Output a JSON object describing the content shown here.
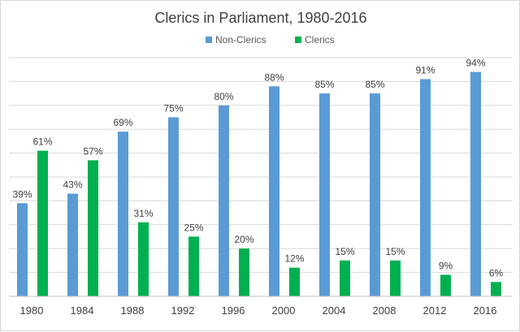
{
  "chart_data": {
    "type": "bar",
    "title": "Clerics in Parliament, 1980-2016",
    "xlabel": "",
    "ylabel": "",
    "categories": [
      "1980",
      "1984",
      "1988",
      "1992",
      "1996",
      "2000",
      "2004",
      "2008",
      "2012",
      "2016"
    ],
    "series": [
      {
        "name": "Non-Clerics",
        "color": "#5b9bd5",
        "values": [
          39,
          43,
          69,
          75,
          80,
          88,
          85,
          85,
          91,
          94
        ],
        "labels": [
          "39%",
          "43%",
          "69%",
          "75%",
          "80%",
          "88%",
          "85%",
          "85%",
          "91%",
          "94%"
        ]
      },
      {
        "name": "Clerics",
        "color": "#00b050",
        "values": [
          61,
          57,
          31,
          25,
          20,
          12,
          15,
          15,
          9,
          6
        ],
        "labels": [
          "61%",
          "57%",
          "31%",
          "25%",
          "20%",
          "12%",
          "15%",
          "15%",
          "9%",
          "6%"
        ]
      }
    ],
    "ylim": [
      0,
      100
    ],
    "grid": true,
    "legend_position": "top"
  }
}
